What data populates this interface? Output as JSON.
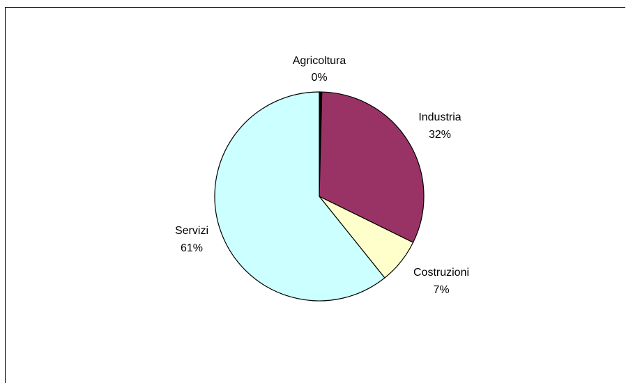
{
  "chart_data": {
    "type": "pie",
    "title": "",
    "slices": [
      {
        "name": "Agricoltura",
        "value": 0.4,
        "label": "0%",
        "color": "#000000"
      },
      {
        "name": "Industria",
        "value": 32,
        "label": "32%",
        "color": "#993366"
      },
      {
        "name": "Costruzioni",
        "value": 7,
        "label": "7%",
        "color": "#FFFFCC"
      },
      {
        "name": "Servizi",
        "value": 61,
        "label": "61%",
        "color": "#CCFFFF"
      }
    ],
    "start": "top",
    "direction": "clockwise",
    "legend": "none"
  }
}
